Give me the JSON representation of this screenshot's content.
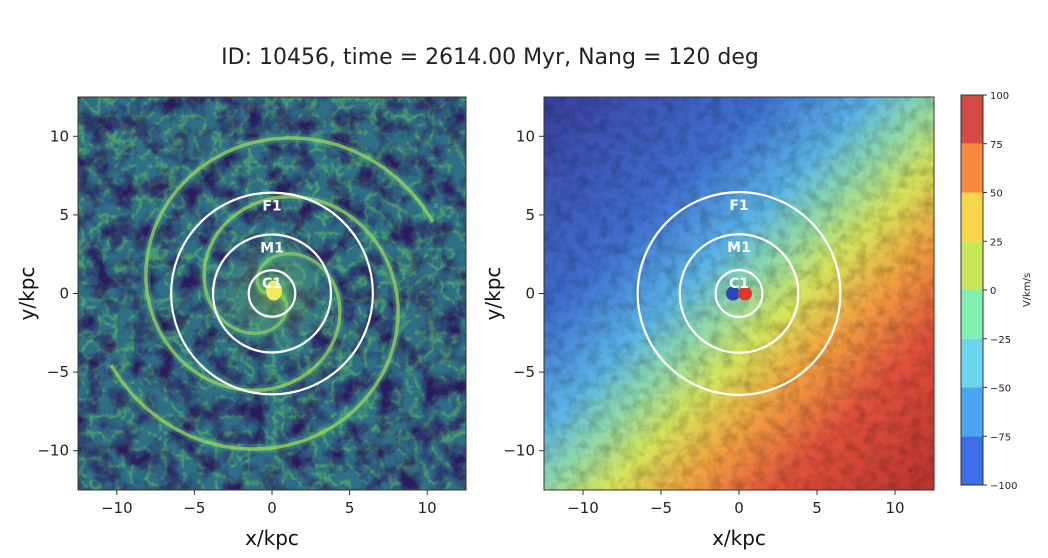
{
  "title": "ID: 10456, time = 2614.00 Myr, Nang = 120 deg",
  "chart_data": [
    {
      "type": "heatmap",
      "panel": "left",
      "quantity": "gas density (colour map, viridis-like)",
      "xlabel": "x/kpc",
      "ylabel": "y/kpc",
      "xlim": [
        -12.5,
        12.5
      ],
      "ylim": [
        -12.5,
        12.5
      ],
      "xticks": [
        -10,
        -5,
        0,
        5,
        10
      ],
      "yticks": [
        -10,
        -5,
        0,
        5,
        10
      ],
      "xticklabels": [
        "−10",
        "−5",
        "0",
        "5",
        "10"
      ],
      "yticklabels": [
        "−10",
        "−5",
        "0",
        "5",
        "10"
      ],
      "grid": false,
      "rings": [
        {
          "label": "C1",
          "radius": 1.5
        },
        {
          "label": "M1",
          "radius": 3.8
        },
        {
          "label": "F1",
          "radius": 6.5
        }
      ]
    },
    {
      "type": "heatmap",
      "panel": "right",
      "quantity": "line-of-sight velocity",
      "xlabel": "x/kpc",
      "ylabel": "y/kpc",
      "xlim": [
        -12.5,
        12.5
      ],
      "ylim": [
        -12.5,
        12.5
      ],
      "xticks": [
        -10,
        -5,
        0,
        5,
        10
      ],
      "yticks": [
        -10,
        -5,
        0,
        5,
        10
      ],
      "xticklabels": [
        "−10",
        "−5",
        "0",
        "5",
        "10"
      ],
      "yticklabels": [
        "−10",
        "−5",
        "0",
        "5",
        "10"
      ],
      "grid": false,
      "rings": [
        {
          "label": "C1",
          "radius": 1.5
        },
        {
          "label": "M1",
          "radius": 3.8
        },
        {
          "label": "F1",
          "radius": 6.5
        }
      ],
      "gradient_direction": "negative to upper-left, positive to lower-right",
      "colorbar": {
        "label": "V/km/s",
        "range": [
          -100,
          100
        ],
        "ticks": [
          100,
          75,
          50,
          25,
          0,
          -25,
          -50,
          -75,
          -100
        ],
        "ticklabels": [
          "100",
          "75",
          "50",
          "25",
          "0",
          "−25",
          "−50",
          "−75",
          "−100"
        ],
        "bands": [
          {
            "from": 75,
            "to": 100,
            "color": "#d64a44"
          },
          {
            "from": 50,
            "to": 75,
            "color": "#f88a3e"
          },
          {
            "from": 25,
            "to": 50,
            "color": "#f7d64a"
          },
          {
            "from": 0,
            "to": 25,
            "color": "#c8e65a"
          },
          {
            "from": -25,
            "to": 0,
            "color": "#7ff0b0"
          },
          {
            "from": -50,
            "to": -25,
            "color": "#6ad6ee"
          },
          {
            "from": -75,
            "to": -50,
            "color": "#4aa6f2"
          },
          {
            "from": -100,
            "to": -75,
            "color": "#3d6ee8"
          }
        ]
      }
    }
  ]
}
